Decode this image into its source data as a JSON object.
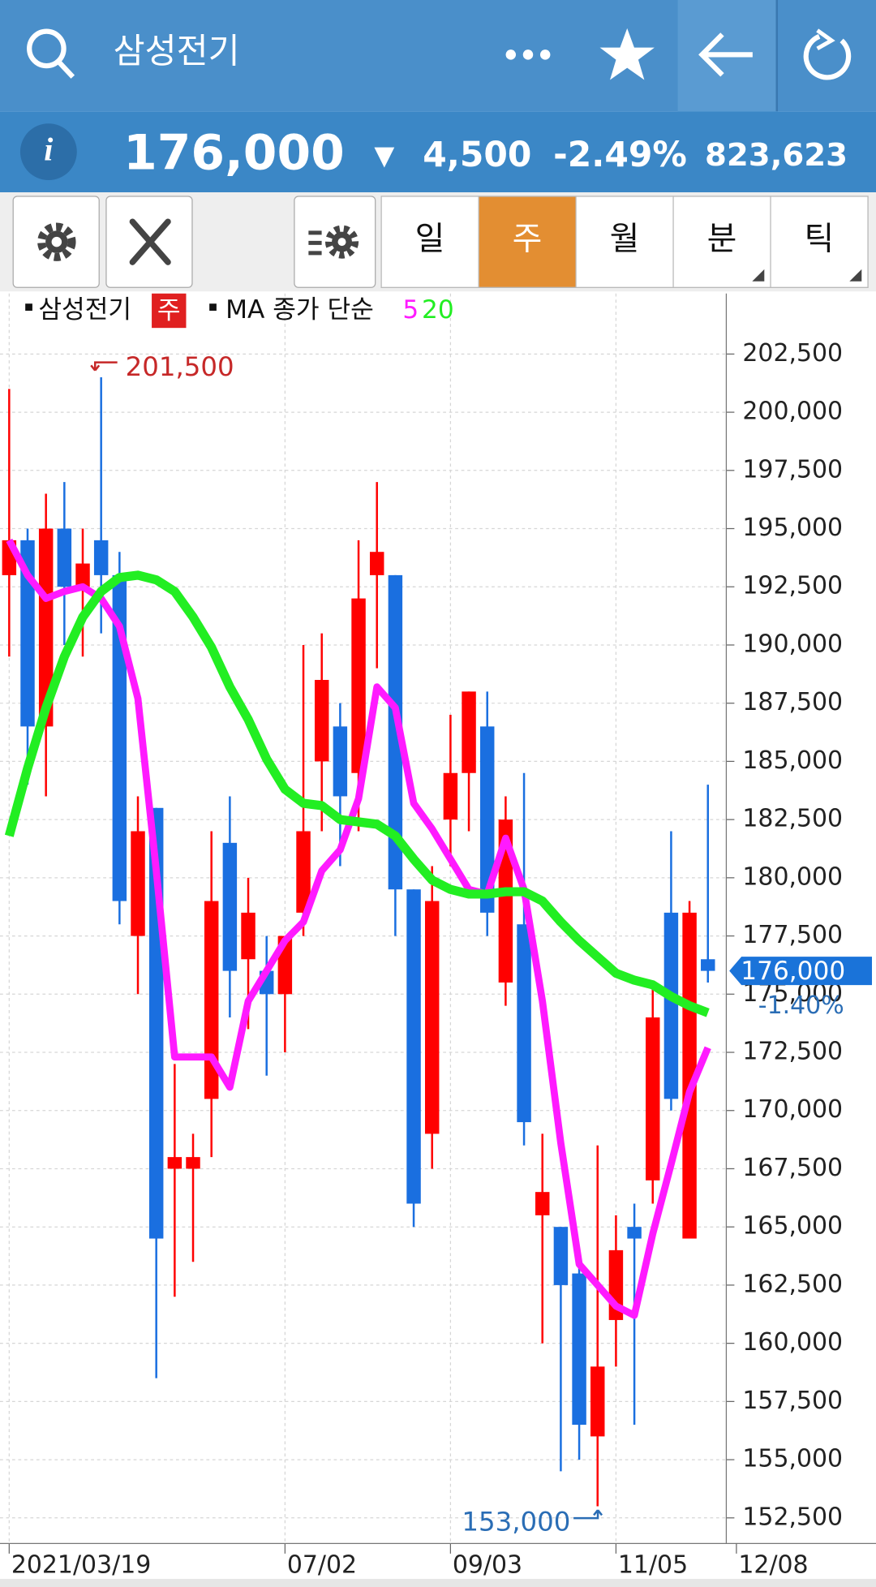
{
  "header": {
    "title": "삼성전기",
    "info_icon": "i",
    "price": "176,000",
    "change_arrow": "▼",
    "change": "4,500",
    "change_rate": "-2.49%",
    "volume": "823,623"
  },
  "tabs": [
    "일",
    "주",
    "월",
    "분",
    "틱"
  ],
  "chart_data": {
    "type": "candlestick",
    "legend": {
      "name": "삼성전기",
      "badge": "주",
      "ma_title": "MA 종가 단순"
    },
    "up_color": "#ff0000",
    "down_color": "#1a6fe0",
    "categories": [
      "2021/03/19",
      null,
      null,
      null,
      null,
      null,
      null,
      null,
      null,
      null,
      null,
      null,
      null,
      null,
      null,
      "07/02",
      null,
      null,
      null,
      null,
      null,
      null,
      null,
      null,
      "09/03",
      null,
      null,
      null,
      null,
      null,
      null,
      null,
      null,
      "11/05",
      null,
      null,
      null,
      null,
      null
    ],
    "x_end_label": "12/08",
    "open": [
      193000,
      194500,
      186500,
      195000,
      192500,
      194500,
      193000,
      177500,
      183000,
      167500,
      167500,
      170500,
      181500,
      176500,
      176000,
      175000,
      178500,
      185000,
      186500,
      184500,
      193000,
      193000,
      179500,
      169000,
      182500,
      184500,
      186500,
      175500,
      178000,
      165500,
      165000,
      163000,
      156000,
      161000,
      165000,
      167000,
      178500,
      164500,
      176500
    ],
    "high": [
      201000,
      195000,
      196500,
      197000,
      195000,
      201500,
      194000,
      183500,
      183000,
      172000,
      169000,
      182000,
      183500,
      180000,
      177500,
      177500,
      190000,
      190500,
      187500,
      194500,
      197000,
      193000,
      179500,
      180500,
      187000,
      188000,
      188000,
      183500,
      184500,
      169000,
      165000,
      163500,
      168500,
      165500,
      166000,
      175500,
      182000,
      179000,
      184000
    ],
    "low": [
      189500,
      184000,
      183500,
      190000,
      189500,
      190500,
      178000,
      175000,
      158500,
      162000,
      163500,
      168000,
      174000,
      173500,
      171500,
      172500,
      177500,
      182000,
      180500,
      182000,
      189000,
      177500,
      165000,
      167500,
      180500,
      182000,
      177500,
      174500,
      168500,
      160000,
      154500,
      155000,
      153000,
      159000,
      156500,
      166000,
      170000,
      164500,
      175500
    ],
    "close": [
      194500,
      186500,
      195000,
      192500,
      193500,
      193000,
      179000,
      182000,
      164500,
      168000,
      168000,
      179000,
      176000,
      178500,
      175000,
      177500,
      182000,
      188500,
      183500,
      192000,
      194000,
      179500,
      166000,
      179000,
      184500,
      188000,
      178500,
      182500,
      169500,
      166500,
      162500,
      156500,
      159000,
      164000,
      164500,
      174000,
      170500,
      178500,
      176000
    ],
    "ma_series": [
      {
        "name": "5",
        "color": "#ff1aff",
        "values": [
          194500,
          193000,
          192000,
          192300,
          192500,
          192000,
          190800,
          187700,
          180300,
          172300,
          172300,
          172300,
          171000,
          174700,
          176000,
          177300,
          178100,
          180300,
          181200,
          183400,
          188200,
          187300,
          183200,
          182100,
          180800,
          179500,
          179300,
          181700,
          179500,
          174700,
          168600,
          163400,
          162500,
          161600,
          161200,
          164700,
          167700,
          170800,
          172700
        ]
      },
      {
        "name": "20",
        "color": "#22ee22",
        "values": [
          181800,
          184700,
          187300,
          189500,
          191200,
          192300,
          192900,
          193000,
          192800,
          192300,
          191200,
          189900,
          188200,
          186800,
          185100,
          183800,
          183200,
          183100,
          182500,
          182400,
          182300,
          181800,
          180800,
          179900,
          179500,
          179300,
          179300,
          179400,
          179400,
          179000,
          178100,
          177300,
          176600,
          175900,
          175600,
          175400,
          174900,
          174500,
          174200
        ]
      }
    ],
    "ylim": [
      151400,
      205100
    ],
    "yticks": [
      {
        "value": 152500,
        "label": "152,500"
      },
      {
        "value": 155000,
        "label": "155,000"
      },
      {
        "value": 157500,
        "label": "157,500"
      },
      {
        "value": 160000,
        "label": "160,000"
      },
      {
        "value": 162500,
        "label": "162,500"
      },
      {
        "value": 165000,
        "label": "165,000"
      },
      {
        "value": 167500,
        "label": "167,500"
      },
      {
        "value": 170000,
        "label": "170,000"
      },
      {
        "value": 172500,
        "label": "172,500"
      },
      {
        "value": 175000,
        "label": "175,000"
      },
      {
        "value": 177500,
        "label": "177,500"
      },
      {
        "value": 180000,
        "label": "180,000"
      },
      {
        "value": 182500,
        "label": "182,500"
      },
      {
        "value": 185000,
        "label": "185,000"
      },
      {
        "value": 187500,
        "label": "187,500"
      },
      {
        "value": 190000,
        "label": "190,000"
      },
      {
        "value": 192500,
        "label": "192,500"
      },
      {
        "value": 195000,
        "label": "195,000"
      },
      {
        "value": 197500,
        "label": "197,500"
      },
      {
        "value": 200000,
        "label": "200,000"
      },
      {
        "value": 202500,
        "label": "202,500"
      }
    ],
    "grid": true,
    "high_label": "201,500",
    "low_label": "153,000",
    "last_price_label": "176,000",
    "last_change_label": "-1.40%"
  }
}
